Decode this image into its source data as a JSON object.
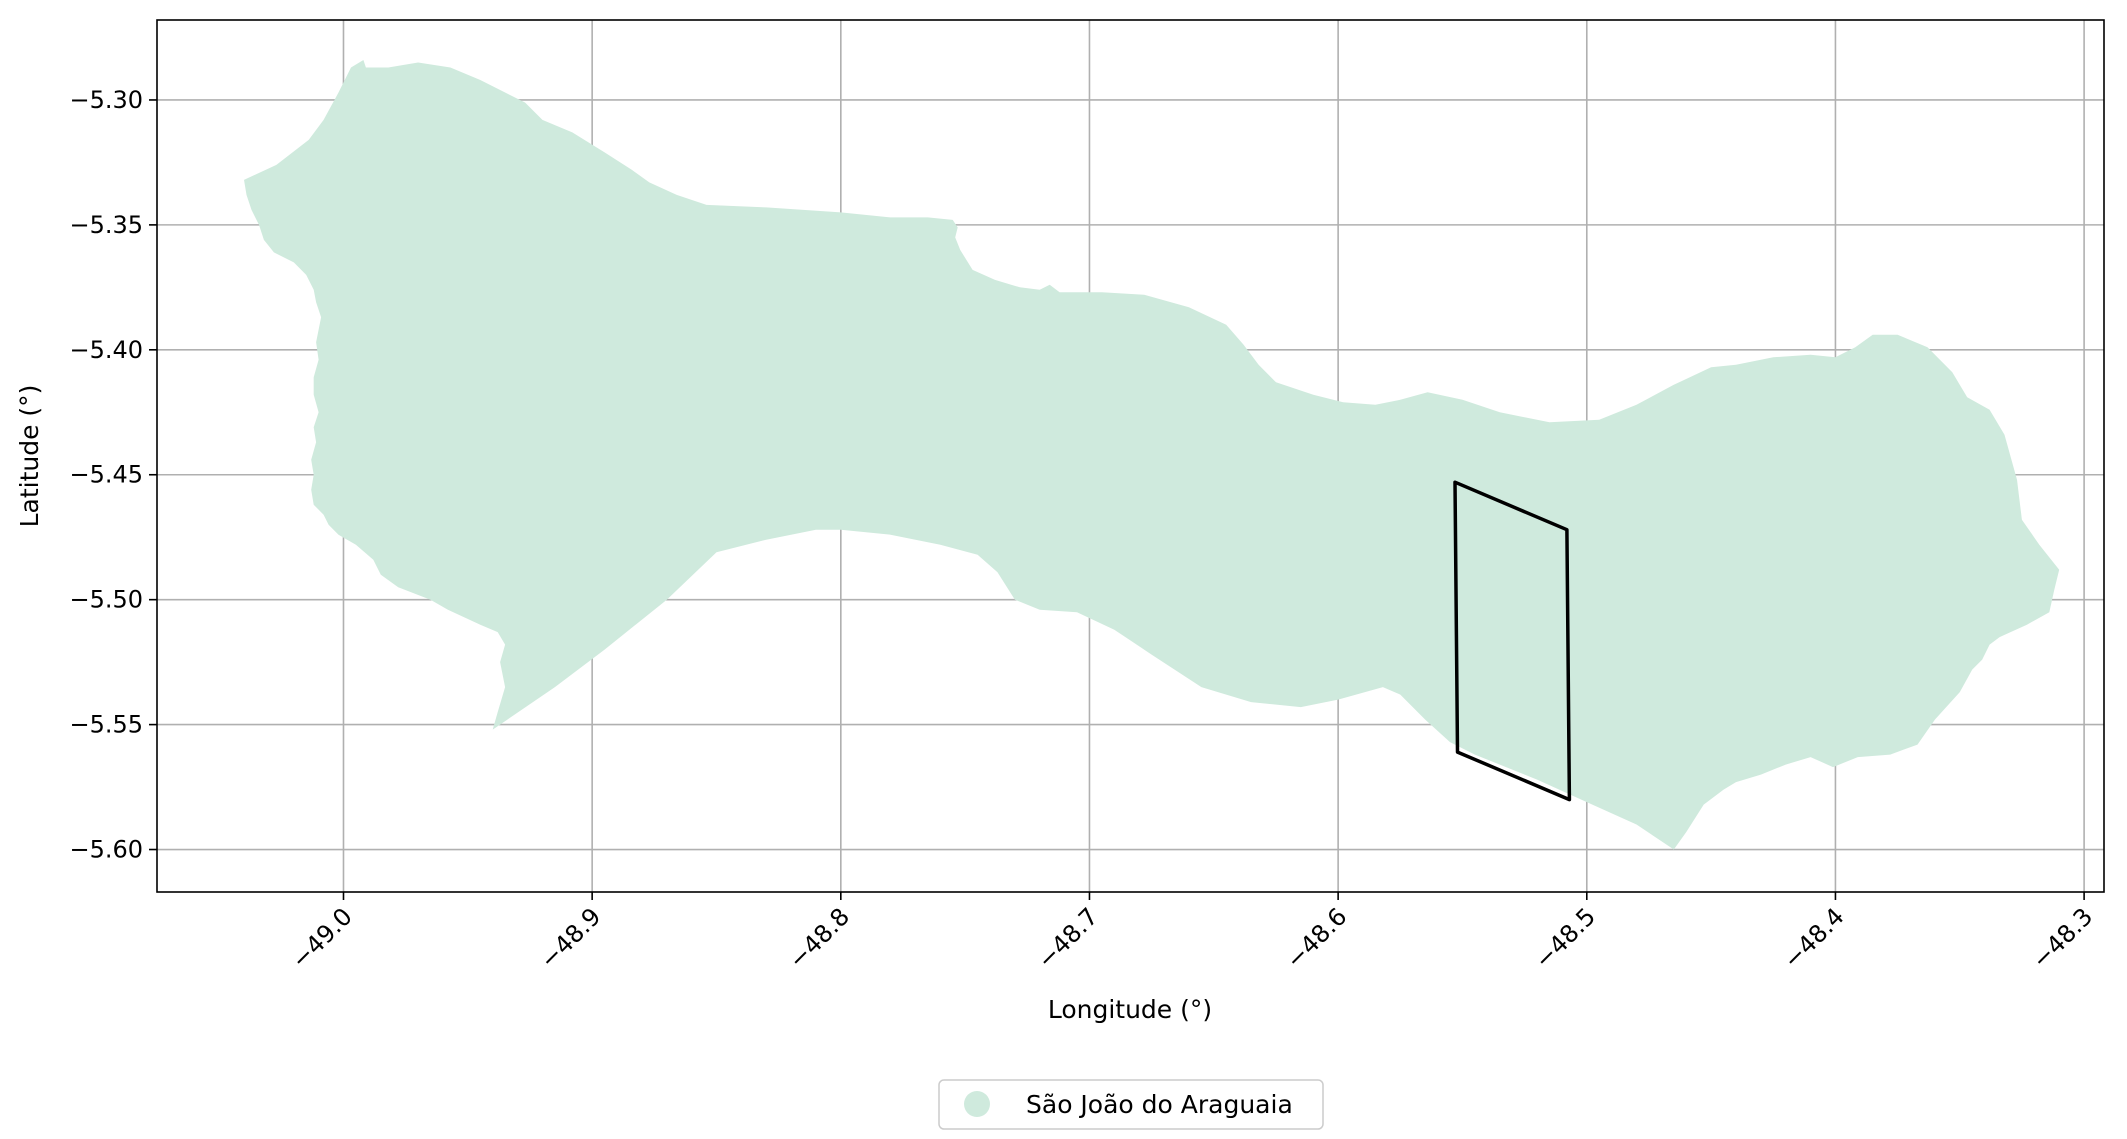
{
  "chart_data": {
    "type": "map",
    "xlabel": "Longitude (°)",
    "ylabel": "Latitude (°)",
    "xlim": [
      -49.075,
      -48.292
    ],
    "ylim": [
      -5.617,
      -5.268
    ],
    "xticks": [
      -49.0,
      -48.9,
      -48.8,
      -48.7,
      -48.6,
      -48.5,
      -48.4,
      -48.3
    ],
    "xtick_labels": [
      "−49.0",
      "−48.9",
      "−48.8",
      "−48.7",
      "−48.6",
      "−48.5",
      "−48.4",
      "−48.3"
    ],
    "yticks": [
      -5.3,
      -5.35,
      -5.4,
      -5.45,
      -5.5,
      -5.55,
      -5.6
    ],
    "ytick_labels": [
      "−5.30",
      "−5.35",
      "−5.40",
      "−5.45",
      "−5.50",
      "−5.55",
      "−5.60"
    ],
    "grid": true,
    "legend_position": "bottom-center, below plot",
    "municipality": {
      "name": "São João do Araguaia",
      "color": "#cfeadd",
      "outline": [
        [
          -49.04,
          -5.332
        ],
        [
          -49.027,
          -5.326
        ],
        [
          -49.014,
          -5.316
        ],
        [
          -49.008,
          -5.308
        ],
        [
          -49.002,
          -5.297
        ],
        [
          -48.997,
          -5.287
        ],
        [
          -48.992,
          -5.284
        ],
        [
          -48.991,
          -5.287
        ],
        [
          -48.982,
          -5.287
        ],
        [
          -48.97,
          -5.285
        ],
        [
          -48.957,
          -5.287
        ],
        [
          -48.945,
          -5.292
        ],
        [
          -48.935,
          -5.297
        ],
        [
          -48.927,
          -5.301
        ],
        [
          -48.92,
          -5.308
        ],
        [
          -48.908,
          -5.313
        ],
        [
          -48.895,
          -5.321
        ],
        [
          -48.884,
          -5.328
        ],
        [
          -48.877,
          -5.333
        ],
        [
          -48.866,
          -5.338
        ],
        [
          -48.854,
          -5.342
        ],
        [
          -48.83,
          -5.343
        ],
        [
          -48.8,
          -5.345
        ],
        [
          -48.78,
          -5.347
        ],
        [
          -48.765,
          -5.347
        ],
        [
          -48.755,
          -5.348
        ],
        [
          -48.753,
          -5.351
        ],
        [
          -48.754,
          -5.355
        ],
        [
          -48.752,
          -5.36
        ],
        [
          -48.747,
          -5.368
        ],
        [
          -48.738,
          -5.372
        ],
        [
          -48.728,
          -5.375
        ],
        [
          -48.72,
          -5.376
        ],
        [
          -48.716,
          -5.374
        ],
        [
          -48.712,
          -5.377
        ],
        [
          -48.695,
          -5.377
        ],
        [
          -48.678,
          -5.378
        ],
        [
          -48.66,
          -5.383
        ],
        [
          -48.645,
          -5.39
        ],
        [
          -48.638,
          -5.398
        ],
        [
          -48.632,
          -5.406
        ],
        [
          -48.625,
          -5.413
        ],
        [
          -48.61,
          -5.418
        ],
        [
          -48.598,
          -5.421
        ],
        [
          -48.585,
          -5.422
        ],
        [
          -48.575,
          -5.42
        ],
        [
          -48.564,
          -5.417
        ],
        [
          -48.55,
          -5.42
        ],
        [
          -48.535,
          -5.425
        ],
        [
          -48.515,
          -5.429
        ],
        [
          -48.495,
          -5.428
        ],
        [
          -48.48,
          -5.422
        ],
        [
          -48.465,
          -5.414
        ],
        [
          -48.45,
          -5.407
        ],
        [
          -48.44,
          -5.406
        ],
        [
          -48.425,
          -5.403
        ],
        [
          -48.41,
          -5.402
        ],
        [
          -48.4,
          -5.403
        ],
        [
          -48.392,
          -5.399
        ],
        [
          -48.385,
          -5.394
        ],
        [
          -48.375,
          -5.394
        ],
        [
          -48.363,
          -5.399
        ],
        [
          -48.353,
          -5.409
        ],
        [
          -48.347,
          -5.419
        ],
        [
          -48.338,
          -5.424
        ],
        [
          -48.332,
          -5.434
        ],
        [
          -48.327,
          -5.452
        ],
        [
          -48.325,
          -5.468
        ],
        [
          -48.318,
          -5.478
        ],
        [
          -48.31,
          -5.488
        ],
        [
          -48.312,
          -5.496
        ],
        [
          -48.314,
          -5.505
        ],
        [
          -48.323,
          -5.51
        ],
        [
          -48.334,
          -5.515
        ],
        [
          -48.338,
          -5.518
        ],
        [
          -48.341,
          -5.524
        ],
        [
          -48.345,
          -5.528
        ],
        [
          -48.35,
          -5.537
        ],
        [
          -48.36,
          -5.548
        ],
        [
          -48.367,
          -5.558
        ],
        [
          -48.378,
          -5.562
        ],
        [
          -48.391,
          -5.563
        ],
        [
          -48.401,
          -5.567
        ],
        [
          -48.41,
          -5.563
        ],
        [
          -48.42,
          -5.566
        ],
        [
          -48.43,
          -5.57
        ],
        [
          -48.44,
          -5.573
        ],
        [
          -48.445,
          -5.576
        ],
        [
          -48.453,
          -5.582
        ],
        [
          -48.46,
          -5.593
        ],
        [
          -48.465,
          -5.6
        ],
        [
          -48.48,
          -5.59
        ],
        [
          -48.5,
          -5.581
        ],
        [
          -48.52,
          -5.572
        ],
        [
          -48.545,
          -5.562
        ],
        [
          -48.555,
          -5.557
        ],
        [
          -48.565,
          -5.548
        ],
        [
          -48.575,
          -5.538
        ],
        [
          -48.582,
          -5.535
        ],
        [
          -48.6,
          -5.54
        ],
        [
          -48.615,
          -5.543
        ],
        [
          -48.635,
          -5.541
        ],
        [
          -48.655,
          -5.535
        ],
        [
          -48.675,
          -5.522
        ],
        [
          -48.69,
          -5.512
        ],
        [
          -48.705,
          -5.505
        ],
        [
          -48.72,
          -5.504
        ],
        [
          -48.73,
          -5.5
        ],
        [
          -48.737,
          -5.489
        ],
        [
          -48.745,
          -5.482
        ],
        [
          -48.76,
          -5.478
        ],
        [
          -48.78,
          -5.474
        ],
        [
          -48.8,
          -5.472
        ],
        [
          -48.81,
          -5.472
        ],
        [
          -48.83,
          -5.476
        ],
        [
          -48.85,
          -5.481
        ],
        [
          -48.87,
          -5.5
        ],
        [
          -48.895,
          -5.52
        ],
        [
          -48.915,
          -5.535
        ],
        [
          -48.94,
          -5.552
        ],
        [
          -48.938,
          -5.545
        ],
        [
          -48.935,
          -5.535
        ],
        [
          -48.937,
          -5.525
        ],
        [
          -48.935,
          -5.518
        ],
        [
          -48.938,
          -5.513
        ],
        [
          -48.945,
          -5.51
        ],
        [
          -48.958,
          -5.504
        ],
        [
          -48.965,
          -5.5
        ],
        [
          -48.978,
          -5.495
        ],
        [
          -48.985,
          -5.49
        ],
        [
          -48.988,
          -5.484
        ],
        [
          -48.995,
          -5.478
        ],
        [
          -49.002,
          -5.474
        ],
        [
          -49.006,
          -5.47
        ],
        [
          -49.008,
          -5.466
        ],
        [
          -49.012,
          -5.462
        ],
        [
          -49.013,
          -5.456
        ],
        [
          -49.012,
          -5.45
        ],
        [
          -49.013,
          -5.444
        ],
        [
          -49.011,
          -5.437
        ],
        [
          -49.012,
          -5.431
        ],
        [
          -49.01,
          -5.425
        ],
        [
          -49.012,
          -5.418
        ],
        [
          -49.012,
          -5.411
        ],
        [
          -49.01,
          -5.404
        ],
        [
          -49.011,
          -5.397
        ],
        [
          -49.01,
          -5.392
        ],
        [
          -49.009,
          -5.387
        ],
        [
          -49.011,
          -5.381
        ],
        [
          -49.012,
          -5.376
        ],
        [
          -49.015,
          -5.37
        ],
        [
          -49.02,
          -5.365
        ],
        [
          -49.028,
          -5.361
        ],
        [
          -49.032,
          -5.356
        ],
        [
          -49.034,
          -5.35
        ],
        [
          -49.037,
          -5.344
        ],
        [
          -49.039,
          -5.338
        ],
        [
          -49.04,
          -5.332
        ]
      ]
    },
    "study_area": {
      "color": "#000000",
      "outline": [
        [
          -48.553,
          -5.453
        ],
        [
          -48.508,
          -5.472
        ],
        [
          -48.507,
          -5.58
        ],
        [
          -48.552,
          -5.561
        ],
        [
          -48.553,
          -5.453
        ]
      ]
    }
  },
  "legend": {
    "label": "São João do Araguaia"
  }
}
